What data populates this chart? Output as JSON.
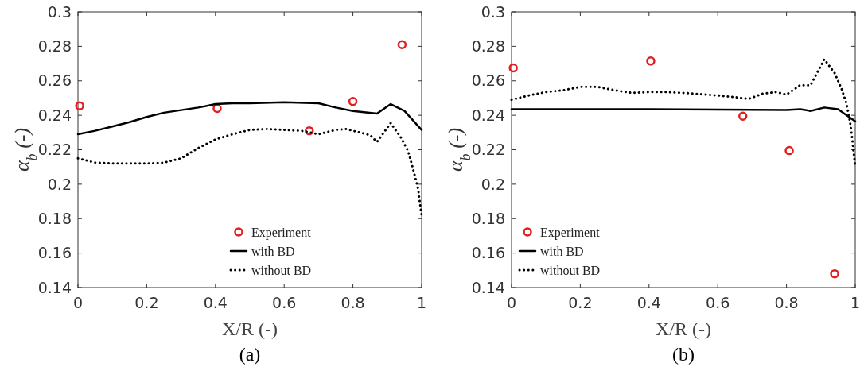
{
  "chart_data": [
    {
      "type": "line",
      "title": "(a)",
      "xlabel": "X/R (-)",
      "ylabel": "α$_{b}$  (-)",
      "xlim": [
        0,
        1
      ],
      "ylim": [
        0.14,
        0.3
      ],
      "xticks": [
        0,
        0.2,
        0.4,
        0.6,
        0.8,
        1
      ],
      "yticks": [
        0.14,
        0.16,
        0.18,
        0.2,
        0.22,
        0.24,
        0.26,
        0.28,
        0.3
      ],
      "grid": false,
      "legend": "bottom right",
      "series": [
        {
          "name": "Experiment",
          "type": "scatter",
          "marker": "circle",
          "color": "#e02020",
          "x": [
            0.005,
            0.405,
            0.673,
            0.8,
            0.943
          ],
          "values": [
            0.2455,
            0.244,
            0.231,
            0.248,
            0.281
          ]
        },
        {
          "name": "with BD",
          "line_style": "solid",
          "color": "#000000",
          "x": [
            0,
            0.05,
            0.1,
            0.15,
            0.2,
            0.25,
            0.3,
            0.35,
            0.4,
            0.45,
            0.5,
            0.6,
            0.7,
            0.75,
            0.8,
            0.87,
            0.91,
            0.95,
            1
          ],
          "values": [
            0.229,
            0.231,
            0.2335,
            0.236,
            0.239,
            0.2415,
            0.243,
            0.2445,
            0.2465,
            0.247,
            0.247,
            0.2475,
            0.247,
            0.2445,
            0.2425,
            0.241,
            0.2465,
            0.2425,
            0.2315
          ]
        },
        {
          "name": "without BD",
          "line_style": "dotted",
          "color": "#000000",
          "x": [
            0,
            0.05,
            0.1,
            0.15,
            0.2,
            0.25,
            0.3,
            0.35,
            0.4,
            0.45,
            0.5,
            0.55,
            0.6,
            0.65,
            0.7,
            0.75,
            0.78,
            0.82,
            0.85,
            0.87,
            0.91,
            0.94,
            0.96,
            0.97,
            0.98,
            0.99,
            0.995,
            1
          ],
          "values": [
            0.215,
            0.2125,
            0.212,
            0.212,
            0.212,
            0.2125,
            0.215,
            0.221,
            0.226,
            0.229,
            0.2315,
            0.232,
            0.2315,
            0.231,
            0.229,
            0.2315,
            0.232,
            0.23,
            0.2285,
            0.2245,
            0.2355,
            0.227,
            0.2195,
            0.2125,
            0.205,
            0.197,
            0.189,
            0.182
          ]
        }
      ]
    },
    {
      "type": "line",
      "title": "(b)",
      "xlabel": "X/R (-)",
      "ylabel": "α$_{b}$  (-)",
      "xlim": [
        0,
        1
      ],
      "ylim": [
        0.14,
        0.3
      ],
      "xticks": [
        0,
        0.2,
        0.4,
        0.6,
        0.8,
        1
      ],
      "yticks": [
        0.14,
        0.16,
        0.18,
        0.2,
        0.22,
        0.24,
        0.26,
        0.28,
        0.3
      ],
      "grid": false,
      "legend": "bottom left",
      "series": [
        {
          "name": "Experiment",
          "type": "scatter",
          "marker": "circle",
          "color": "#e02020",
          "x": [
            0.005,
            0.405,
            0.673,
            0.808,
            0.94
          ],
          "values": [
            0.2675,
            0.2715,
            0.2395,
            0.2195,
            0.148
          ]
        },
        {
          "name": "with BD",
          "line_style": "solid",
          "color": "#000000",
          "x": [
            0,
            0.2,
            0.4,
            0.6,
            0.8,
            0.84,
            0.87,
            0.91,
            0.95,
            1
          ],
          "values": [
            0.2435,
            0.2435,
            0.2435,
            0.2433,
            0.243,
            0.2435,
            0.2425,
            0.2445,
            0.2435,
            0.2365
          ]
        },
        {
          "name": "without BD",
          "line_style": "dotted",
          "color": "#000000",
          "x": [
            0,
            0.05,
            0.1,
            0.15,
            0.2,
            0.25,
            0.3,
            0.35,
            0.4,
            0.45,
            0.5,
            0.6,
            0.65,
            0.69,
            0.73,
            0.77,
            0.8,
            0.84,
            0.87,
            0.91,
            0.94,
            0.96,
            0.975,
            0.985,
            0.99,
            0.995,
            1
          ],
          "values": [
            0.249,
            0.2515,
            0.2535,
            0.2545,
            0.2565,
            0.2565,
            0.2545,
            0.253,
            0.2535,
            0.2535,
            0.253,
            0.2515,
            0.2505,
            0.2495,
            0.2525,
            0.2535,
            0.252,
            0.2575,
            0.2575,
            0.2725,
            0.2645,
            0.2555,
            0.2465,
            0.236,
            0.2285,
            0.219,
            0.2105
          ]
        }
      ]
    }
  ]
}
